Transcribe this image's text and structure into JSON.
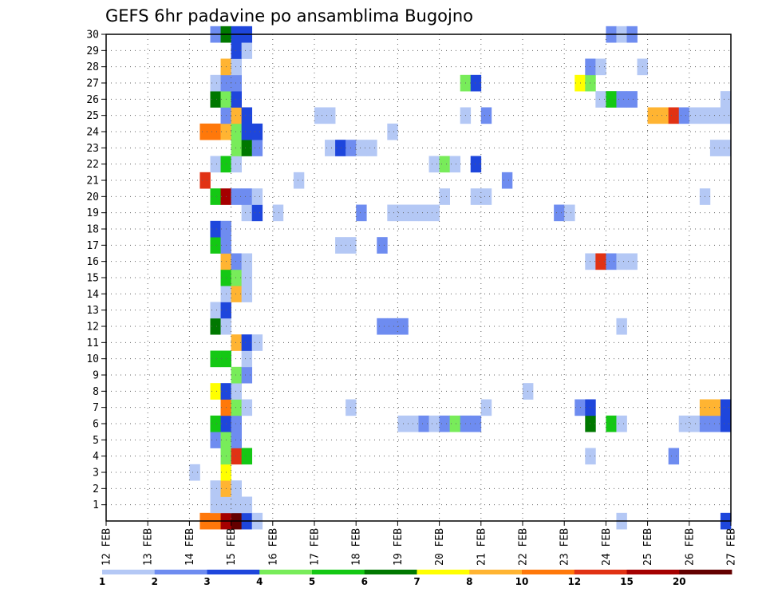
{
  "chart_data": {
    "type": "heatmap",
    "title": "GEFS 6hr padavine po ansamblima Bugojno",
    "xlabel": "",
    "ylabel": "",
    "x_tick_labels": [
      "12 FEB",
      "13 FEB",
      "14 FEB",
      "15 FEB",
      "16 FEB",
      "17 FEB",
      "18 FEB",
      "19 FEB",
      "20 FEB",
      "21 FEB",
      "22 FEB",
      "23 FEB",
      "24 FEB",
      "25 FEB",
      "26 FEB",
      "27 FEB"
    ],
    "y_tick_labels": [
      "1",
      "2",
      "3",
      "4",
      "5",
      "6",
      "7",
      "8",
      "9",
      "10",
      "11",
      "12",
      "13",
      "14",
      "15",
      "16",
      "17",
      "18",
      "19",
      "20",
      "21",
      "22",
      "23",
      "24",
      "25",
      "26",
      "27",
      "28",
      "29",
      "30"
    ],
    "xlim_steps": [
      0,
      60
    ],
    "ylim_members": [
      0,
      30
    ],
    "steps_per_day": 4,
    "grid": true,
    "legend": {
      "placement": "bottom",
      "labels": [
        "1",
        "2",
        "3",
        "4",
        "5",
        "6",
        "7",
        "8",
        "10",
        "12",
        "15",
        "20"
      ],
      "colors": [
        "#b4c8f5",
        "#6e8cf0",
        "#1e46dc",
        "#78ec5a",
        "#14c814",
        "#007800",
        "#ffff00",
        "#ffb432",
        "#ff780a",
        "#e13214",
        "#a50000",
        "#640000"
      ]
    },
    "value_unit": "color class index (0=1-2, 1=2-3, 2=3-4, 3=4-5, 4=5-6, 5=6-7, 6=7-8, 7=8-10, 8=10-12, 9=12-15, 10=15-20, 11=>20)",
    "cells": [
      [
        9,
        0,
        8
      ],
      [
        10,
        0,
        8
      ],
      [
        11,
        0,
        10
      ],
      [
        12,
        0,
        11
      ],
      [
        13,
        0,
        2
      ],
      [
        14,
        0,
        0
      ],
      [
        59,
        0,
        2
      ],
      [
        49,
        0,
        0
      ],
      [
        10,
        1,
        0
      ],
      [
        11,
        1,
        0
      ],
      [
        12,
        1,
        0
      ],
      [
        13,
        1,
        0
      ],
      [
        10,
        2,
        0
      ],
      [
        11,
        2,
        7
      ],
      [
        12,
        2,
        0
      ],
      [
        8,
        3,
        0
      ],
      [
        11,
        3,
        6
      ],
      [
        11,
        4,
        3
      ],
      [
        12,
        4,
        9
      ],
      [
        13,
        4,
        4
      ],
      [
        54,
        4,
        1
      ],
      [
        46,
        4,
        0
      ],
      [
        10,
        5,
        1
      ],
      [
        11,
        5,
        3
      ],
      [
        12,
        5,
        1
      ],
      [
        10,
        6,
        4
      ],
      [
        11,
        6,
        2
      ],
      [
        12,
        6,
        1
      ],
      [
        28,
        6,
        0
      ],
      [
        29,
        6,
        0
      ],
      [
        30,
        6,
        1
      ],
      [
        31,
        6,
        0
      ],
      [
        32,
        6,
        1
      ],
      [
        33,
        6,
        3
      ],
      [
        34,
        6,
        1
      ],
      [
        35,
        6,
        1
      ],
      [
        46,
        6,
        5
      ],
      [
        48,
        6,
        4
      ],
      [
        49,
        6,
        0
      ],
      [
        55,
        6,
        0
      ],
      [
        56,
        6,
        0
      ],
      [
        57,
        6,
        1
      ],
      [
        58,
        6,
        1
      ],
      [
        59,
        6,
        2
      ],
      [
        11,
        7,
        8
      ],
      [
        12,
        7,
        3
      ],
      [
        13,
        7,
        0
      ],
      [
        23,
        7,
        0
      ],
      [
        36,
        7,
        0
      ],
      [
        45,
        7,
        1
      ],
      [
        46,
        7,
        2
      ],
      [
        57,
        7,
        7
      ],
      [
        58,
        7,
        7
      ],
      [
        59,
        7,
        2
      ],
      [
        10,
        8,
        6
      ],
      [
        11,
        8,
        2
      ],
      [
        12,
        8,
        0
      ],
      [
        40,
        8,
        0
      ],
      [
        12,
        9,
        3
      ],
      [
        13,
        9,
        1
      ],
      [
        10,
        10,
        4
      ],
      [
        11,
        10,
        4
      ],
      [
        13,
        10,
        0
      ],
      [
        12,
        11,
        7
      ],
      [
        13,
        11,
        2
      ],
      [
        14,
        11,
        0
      ],
      [
        10,
        12,
        5
      ],
      [
        11,
        12,
        0
      ],
      [
        26,
        12,
        1
      ],
      [
        27,
        12,
        1
      ],
      [
        28,
        12,
        1
      ],
      [
        49,
        12,
        0
      ],
      [
        10,
        13,
        0
      ],
      [
        11,
        13,
        2
      ],
      [
        11,
        14,
        0
      ],
      [
        12,
        14,
        7
      ],
      [
        13,
        14,
        0
      ],
      [
        11,
        15,
        4
      ],
      [
        12,
        15,
        3
      ],
      [
        13,
        15,
        0
      ],
      [
        11,
        16,
        7
      ],
      [
        12,
        16,
        1
      ],
      [
        13,
        16,
        0
      ],
      [
        46,
        16,
        0
      ],
      [
        47,
        16,
        9
      ],
      [
        48,
        16,
        1
      ],
      [
        49,
        16,
        0
      ],
      [
        50,
        16,
        0
      ],
      [
        10,
        17,
        4
      ],
      [
        11,
        17,
        1
      ],
      [
        22,
        17,
        0
      ],
      [
        23,
        17,
        0
      ],
      [
        26,
        17,
        1
      ],
      [
        10,
        18,
        2
      ],
      [
        11,
        18,
        1
      ],
      [
        13,
        19,
        0
      ],
      [
        14,
        19,
        2
      ],
      [
        16,
        19,
        0
      ],
      [
        24,
        19,
        1
      ],
      [
        27,
        19,
        0
      ],
      [
        28,
        19,
        0
      ],
      [
        29,
        19,
        0
      ],
      [
        30,
        19,
        0
      ],
      [
        31,
        19,
        0
      ],
      [
        43,
        19,
        1
      ],
      [
        44,
        19,
        0
      ],
      [
        10,
        20,
        4
      ],
      [
        11,
        20,
        10
      ],
      [
        12,
        20,
        1
      ],
      [
        13,
        20,
        1
      ],
      [
        14,
        20,
        0
      ],
      [
        32,
        20,
        0
      ],
      [
        35,
        20,
        0
      ],
      [
        36,
        20,
        0
      ],
      [
        57,
        20,
        0
      ],
      [
        9,
        21,
        9
      ],
      [
        18,
        21,
        0
      ],
      [
        38,
        21,
        1
      ],
      [
        10,
        22,
        0
      ],
      [
        11,
        22,
        4
      ],
      [
        12,
        22,
        0
      ],
      [
        31,
        22,
        0
      ],
      [
        32,
        22,
        3
      ],
      [
        33,
        22,
        0
      ],
      [
        35,
        22,
        2
      ],
      [
        12,
        23,
        3
      ],
      [
        13,
        23,
        5
      ],
      [
        14,
        23,
        1
      ],
      [
        21,
        23,
        0
      ],
      [
        22,
        23,
        2
      ],
      [
        23,
        23,
        1
      ],
      [
        24,
        23,
        0
      ],
      [
        25,
        23,
        0
      ],
      [
        58,
        23,
        0
      ],
      [
        59,
        23,
        0
      ],
      [
        9,
        24,
        8
      ],
      [
        10,
        24,
        8
      ],
      [
        11,
        24,
        7
      ],
      [
        12,
        24,
        3
      ],
      [
        13,
        24,
        2
      ],
      [
        14,
        24,
        2
      ],
      [
        27,
        24,
        0
      ],
      [
        11,
        25,
        1
      ],
      [
        12,
        25,
        7
      ],
      [
        13,
        25,
        2
      ],
      [
        20,
        25,
        0
      ],
      [
        21,
        25,
        0
      ],
      [
        34,
        25,
        0
      ],
      [
        36,
        25,
        1
      ],
      [
        52,
        25,
        7
      ],
      [
        53,
        25,
        7
      ],
      [
        54,
        25,
        9
      ],
      [
        55,
        25,
        1
      ],
      [
        56,
        25,
        0
      ],
      [
        57,
        25,
        0
      ],
      [
        58,
        25,
        0
      ],
      [
        59,
        25,
        0
      ],
      [
        10,
        26,
        5
      ],
      [
        11,
        26,
        3
      ],
      [
        12,
        26,
        2
      ],
      [
        47,
        26,
        0
      ],
      [
        48,
        26,
        4
      ],
      [
        49,
        26,
        1
      ],
      [
        50,
        26,
        1
      ],
      [
        59,
        26,
        0
      ],
      [
        10,
        27,
        0
      ],
      [
        11,
        27,
        1
      ],
      [
        12,
        27,
        1
      ],
      [
        34,
        27,
        3
      ],
      [
        35,
        27,
        2
      ],
      [
        45,
        27,
        6
      ],
      [
        46,
        27,
        3
      ],
      [
        11,
        28,
        7
      ],
      [
        12,
        28,
        0
      ],
      [
        46,
        28,
        1
      ],
      [
        47,
        28,
        0
      ],
      [
        51,
        28,
        0
      ],
      [
        12,
        29,
        2
      ],
      [
        13,
        29,
        0
      ],
      [
        10,
        30,
        1
      ],
      [
        11,
        30,
        5
      ],
      [
        12,
        30,
        2
      ],
      [
        13,
        30,
        2
      ],
      [
        48,
        30,
        1
      ],
      [
        49,
        30,
        0
      ],
      [
        50,
        30,
        1
      ]
    ]
  }
}
